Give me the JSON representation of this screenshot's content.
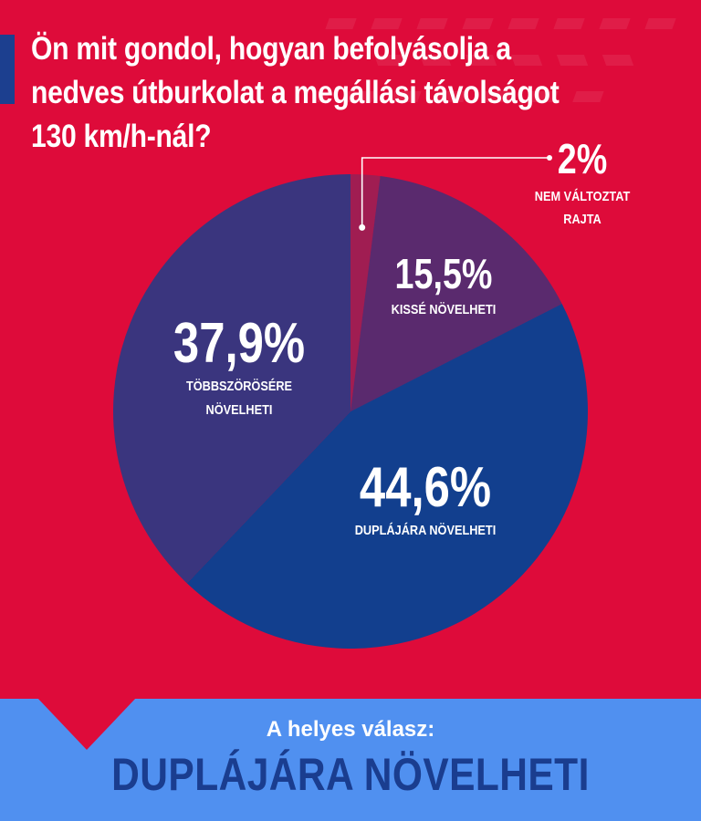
{
  "title": "Ön mit gondol, hogyan befolyásolja a nedves útburkolat a megállási távolságot 130 km/h-nál?",
  "chart_data": {
    "type": "pie",
    "title": "Ön mit gondol, hogyan befolyásolja a nedves útburkolat a megállási távolságot 130 km/h-nál?",
    "slices": [
      {
        "label_lines": [
          "NEM VÁLTOZTAT",
          "RAJTA"
        ],
        "value": 2,
        "value_label": "2%",
        "color": "#a01d52"
      },
      {
        "label_lines": [
          "KISSÉ NÖVELHETI"
        ],
        "value": 15.5,
        "value_label": "15,5%",
        "color": "#5a2a6e"
      },
      {
        "label_lines": [
          "DUPLÁJÁRA NÖVELHETI"
        ],
        "value": 44.6,
        "value_label": "44,6%",
        "color": "#123f8e"
      },
      {
        "label_lines": [
          "TÖBBSZÖRÖSÉRE",
          "NÖVELHETI"
        ],
        "value": 37.9,
        "value_label": "37,9%",
        "color": "#3a357e"
      }
    ]
  },
  "answer": {
    "caption": "A helyes válasz:",
    "value": "DUPLÁJÁRA NÖVELHETI"
  },
  "colors": {
    "background": "#de0b3a",
    "answer_band": "#5090f0",
    "answer_text": "#1a3d8f"
  }
}
